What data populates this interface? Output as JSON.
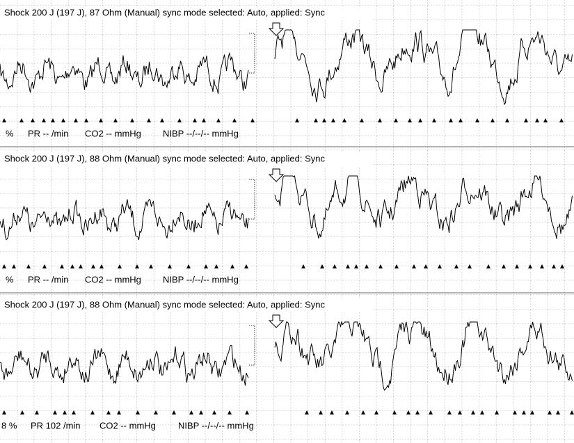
{
  "strips": [
    {
      "header": "Shock 200 J (197 J), 87 Ohm (Manual)  sync mode selected: Auto, applied: Sync",
      "status": [
        "%",
        "PR -- /min",
        "CO2 -- mmHg",
        "NIBP --/--/-- mmHg"
      ]
    },
    {
      "header": "Shock 200 J (197 J), 88 Ohm (Manual)  sync mode selected: Auto, applied: Sync",
      "status": [
        "%",
        "PR -- /min",
        "CO2 -- mmHg",
        "NIBP --/--/-- mmHg"
      ]
    },
    {
      "header": "Shock 200 J (197 J), 88 Ohm (Manual)  sync mode selected: Auto, applied: Sync",
      "status": [
        "8 %",
        "PR 102 /min",
        "CO2 -- mmHg",
        "NIBP --/--/-- mmHg"
      ]
    }
  ]
}
